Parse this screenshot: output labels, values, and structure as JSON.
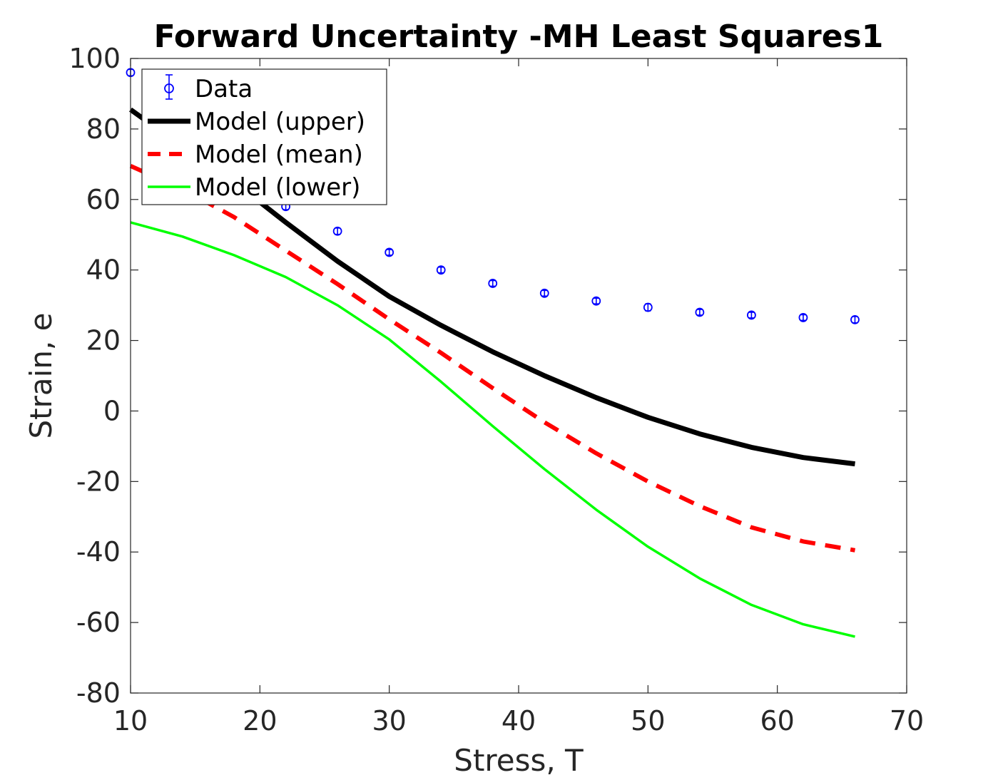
{
  "chart_data": {
    "type": "line",
    "title": "Forward Uncertainty -MH Least Squares1",
    "xlabel": "Stress, T",
    "ylabel": "Strain, e",
    "xlim": [
      10,
      70
    ],
    "ylim": [
      -80,
      100
    ],
    "xticks": [
      10,
      20,
      30,
      40,
      50,
      60,
      70
    ],
    "yticks": [
      -80,
      -60,
      -40,
      -20,
      0,
      20,
      40,
      60,
      80,
      100
    ],
    "legend_placement": "top-left",
    "grid": false,
    "x": [
      10,
      14,
      18,
      22,
      26,
      30,
      34,
      38,
      42,
      46,
      50,
      54,
      58,
      62,
      66
    ],
    "series": [
      {
        "name": "Data",
        "style": "errorbar-circle",
        "color": "#0000ff",
        "values": [
          96,
          82,
          69,
          58,
          51,
          45,
          40,
          36.2,
          33.4,
          31.2,
          29.4,
          28,
          27.2,
          26.5,
          25.9
        ],
        "errors": [
          0.9,
          0.9,
          0.9,
          0.9,
          0.9,
          0.8,
          0.8,
          0.8,
          0.8,
          0.8,
          1.0,
          0.8,
          0.8,
          0.8,
          0.9
        ]
      },
      {
        "name": "Model (upper)",
        "style": "solid-thick",
        "color": "#000000",
        "values": [
          85.5,
          75,
          65,
          53.5,
          42.5,
          32.5,
          24.3,
          16.8,
          10,
          3.8,
          -1.8,
          -6.5,
          -10.3,
          -13.2,
          -15
        ]
      },
      {
        "name": "Model (mean)",
        "style": "dashed",
        "color": "#ff0000",
        "values": [
          69.5,
          63,
          55,
          45.5,
          36,
          26,
          16.5,
          6.5,
          -3.2,
          -12,
          -20,
          -27,
          -33,
          -37,
          -39.5
        ]
      },
      {
        "name": "Model (lower)",
        "style": "solid-thin",
        "color": "#00ff00",
        "values": [
          53.5,
          49.5,
          44.2,
          38,
          30,
          20.3,
          8.3,
          -4.3,
          -16.5,
          -28,
          -38.5,
          -47.5,
          -55,
          -60.5,
          -64
        ]
      }
    ]
  }
}
